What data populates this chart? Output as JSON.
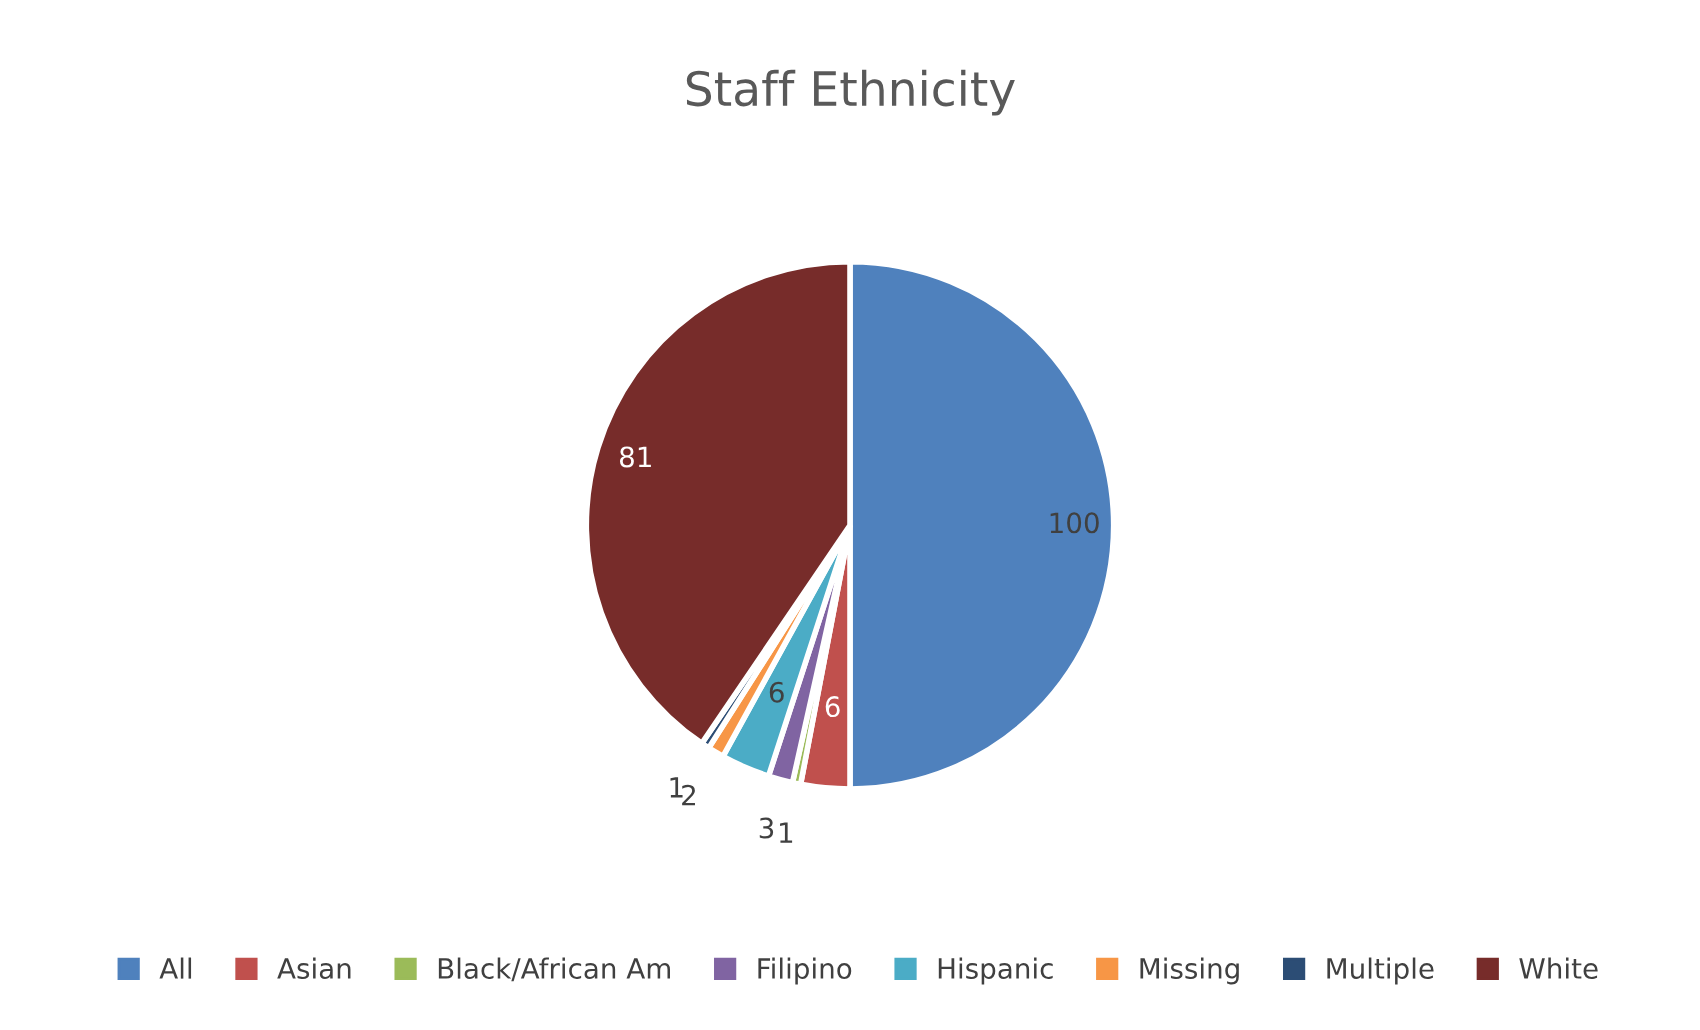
{
  "chart_data": {
    "type": "pie",
    "title": "Staff Ethnicity",
    "categories": [
      "All",
      "Asian",
      "Black/African Am",
      "Filipino",
      "Hispanic",
      "Missing",
      "Multiple",
      "White"
    ],
    "values": [
      100,
      6,
      1,
      3,
      6,
      2,
      1,
      81
    ],
    "colors": [
      "#4f81bd",
      "#c0504d",
      "#9bbb59",
      "#8064a2",
      "#4bacc6",
      "#f79646",
      "#2c4d75",
      "#772c2a"
    ],
    "data_labels": true,
    "legend": "bottom"
  }
}
